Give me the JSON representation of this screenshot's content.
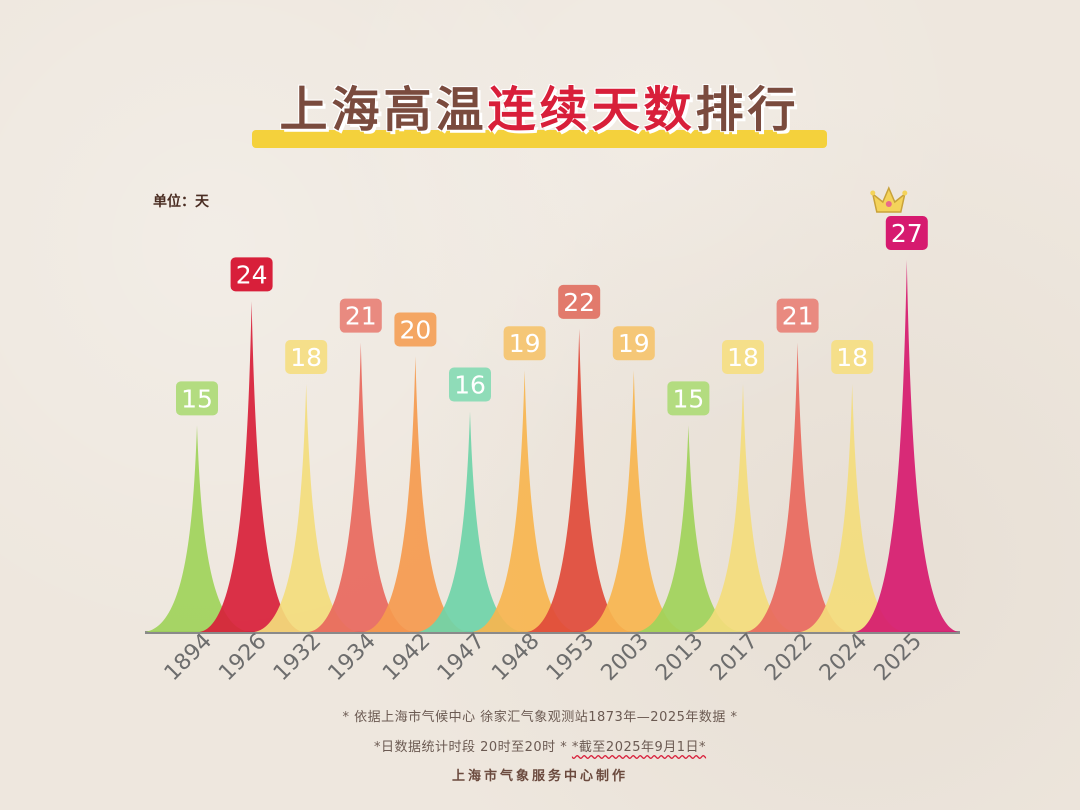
{
  "title": {
    "part1": "上海高温",
    "part2": "连续天数",
    "part3": "排行"
  },
  "unit_label": "单位：天",
  "notes": {
    "line1": "* 依据上海市气候中心 徐家汇气象观测站1873年—2025年数据 *",
    "line2_a": "*日数据统计时段 20时至20时 * ",
    "line2_b": "*截至2025年9月1日*",
    "line3": "上海市气象服务中心制作"
  },
  "chart_data": {
    "type": "bar",
    "categories": [
      "1894",
      "1926",
      "1932",
      "1934",
      "1942",
      "1947",
      "1948",
      "1953",
      "2003",
      "2013",
      "2017",
      "2022",
      "2024",
      "2025"
    ],
    "values": [
      15,
      24,
      18,
      21,
      20,
      16,
      19,
      22,
      19,
      15,
      18,
      21,
      18,
      27
    ],
    "title": "上海高温连续天数排行",
    "ylabel": "单位：天",
    "ylim": [
      0,
      27
    ],
    "grid": false,
    "colors": [
      "#9fd35a",
      "#d81f3a",
      "#f3dc7c",
      "#e8685d",
      "#f59a4e",
      "#6fd4a8",
      "#f7b54f",
      "#e04a3a",
      "#f7b54f",
      "#9fd35a",
      "#f3dc7c",
      "#e8685d",
      "#f3dc7c",
      "#d61a6f"
    ],
    "label_colors": [
      "#b3dc80",
      "#d81f3a",
      "#f5df8a",
      "#e98a80",
      "#f4a663",
      "#8fdcb8",
      "#f5c777",
      "#e27a6c",
      "#f5c777",
      "#b3dc80",
      "#f5df8a",
      "#e98a80",
      "#f5df8a",
      "#d61a6f"
    ],
    "highlight": {
      "category": "2025",
      "icon": "crown-icon"
    }
  }
}
